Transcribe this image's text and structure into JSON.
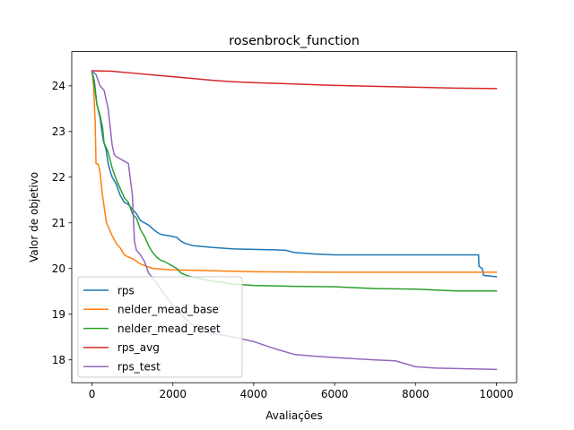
{
  "chart_data": {
    "type": "line",
    "title": "rosenbrock_function",
    "xlabel": "Avaliações",
    "ylabel": "Valor de objetivo",
    "xlim": [
      -500,
      10500
    ],
    "ylim": [
      17.5,
      24.75
    ],
    "xticks": [
      0,
      2000,
      4000,
      6000,
      8000,
      10000
    ],
    "xtick_labels": [
      "0",
      "2000",
      "4000",
      "6000",
      "8000",
      "10000"
    ],
    "yticks": [
      18,
      19,
      20,
      21,
      22,
      23,
      24
    ],
    "ytick_labels": [
      "18",
      "19",
      "20",
      "21",
      "22",
      "23",
      "24"
    ],
    "grid": false,
    "legend_position": "lower-left",
    "series": [
      {
        "name": "rps",
        "color": "#1f77b4",
        "x": [
          0,
          60,
          120,
          200,
          280,
          350,
          400,
          460,
          500,
          600,
          700,
          800,
          900,
          1000,
          1100,
          1200,
          1300,
          1400,
          1500,
          1600,
          1700,
          1800,
          1900,
          2000,
          2100,
          2200,
          2300,
          2500,
          3000,
          3500,
          4000,
          4500,
          4800,
          5000,
          5500,
          6000,
          7000,
          8000,
          9000,
          9500,
          9560,
          9570,
          9650,
          9680,
          10000
        ],
        "y": [
          24.33,
          24.1,
          23.6,
          23.3,
          22.8,
          22.6,
          22.3,
          22.1,
          22.0,
          21.85,
          21.6,
          21.45,
          21.4,
          21.3,
          21.2,
          21.05,
          21.0,
          20.95,
          20.87,
          20.8,
          20.75,
          20.73,
          20.72,
          20.7,
          20.68,
          20.6,
          20.55,
          20.5,
          20.46,
          20.43,
          20.42,
          20.41,
          20.4,
          20.35,
          20.32,
          20.3,
          20.3,
          20.3,
          20.3,
          20.3,
          20.3,
          20.05,
          20.0,
          19.85,
          19.82
        ]
      },
      {
        "name": "nelder_mead_base",
        "color": "#ff7f0e",
        "x": [
          0,
          40,
          80,
          100,
          160,
          200,
          260,
          300,
          360,
          400,
          500,
          600,
          700,
          800,
          900,
          1000,
          1200,
          1500,
          2000,
          3000,
          4000,
          6000,
          8000,
          10000
        ],
        "y": [
          24.33,
          24.0,
          23.2,
          22.3,
          22.28,
          22.1,
          21.6,
          21.35,
          21.0,
          20.92,
          20.72,
          20.55,
          20.45,
          20.3,
          20.25,
          20.22,
          20.1,
          20.0,
          19.97,
          19.95,
          19.93,
          19.92,
          19.92,
          19.92
        ]
      },
      {
        "name": "nelder_mead_reset",
        "color": "#2ca02c",
        "x": [
          0,
          60,
          120,
          200,
          260,
          300,
          400,
          500,
          600,
          700,
          800,
          900,
          1000,
          1100,
          1200,
          1300,
          1400,
          1500,
          1600,
          1700,
          1800,
          1900,
          2000,
          2100,
          2200,
          2400,
          3000,
          3500,
          4000,
          5000,
          6000,
          7000,
          8000,
          9000,
          10000
        ],
        "y": [
          24.33,
          24.0,
          23.6,
          23.35,
          23.1,
          22.75,
          22.55,
          22.2,
          21.95,
          21.75,
          21.55,
          21.45,
          21.2,
          21.1,
          20.85,
          20.7,
          20.5,
          20.35,
          20.25,
          20.18,
          20.15,
          20.1,
          20.05,
          20.0,
          19.9,
          19.83,
          19.72,
          19.66,
          19.63,
          19.61,
          19.6,
          19.56,
          19.55,
          19.51,
          19.51
        ]
      },
      {
        "name": "rps_avg",
        "color": "#d62728",
        "x": [
          0,
          500,
          1000,
          1500,
          2000,
          2500,
          3000,
          3500,
          4000,
          5000,
          6000,
          7000,
          8000,
          9000,
          10000
        ],
        "y": [
          24.33,
          24.32,
          24.28,
          24.24,
          24.2,
          24.16,
          24.12,
          24.09,
          24.07,
          24.04,
          24.01,
          23.99,
          23.97,
          23.95,
          23.94
        ]
      },
      {
        "name": "rps_test",
        "color": "#9467bd",
        "x": [
          0,
          100,
          200,
          300,
          400,
          450,
          500,
          550,
          600,
          700,
          800,
          900,
          950,
          1000,
          1050,
          1100,
          1200,
          1300,
          1400,
          1500,
          1600,
          1700,
          1800,
          2000,
          2200,
          2500,
          2800,
          3000,
          3500,
          4000,
          4500,
          5000,
          5500,
          6000,
          7000,
          7500,
          8000,
          8500,
          9000,
          10000
        ],
        "y": [
          24.33,
          24.25,
          24.0,
          23.9,
          23.5,
          23.1,
          22.7,
          22.5,
          22.45,
          22.4,
          22.35,
          22.3,
          21.95,
          21.6,
          20.6,
          20.4,
          20.3,
          20.15,
          19.9,
          19.8,
          19.68,
          19.55,
          19.42,
          19.2,
          19.0,
          18.75,
          18.62,
          18.58,
          18.5,
          18.4,
          18.25,
          18.12,
          18.08,
          18.05,
          18.0,
          17.98,
          17.85,
          17.82,
          17.81,
          17.79
        ]
      }
    ]
  }
}
